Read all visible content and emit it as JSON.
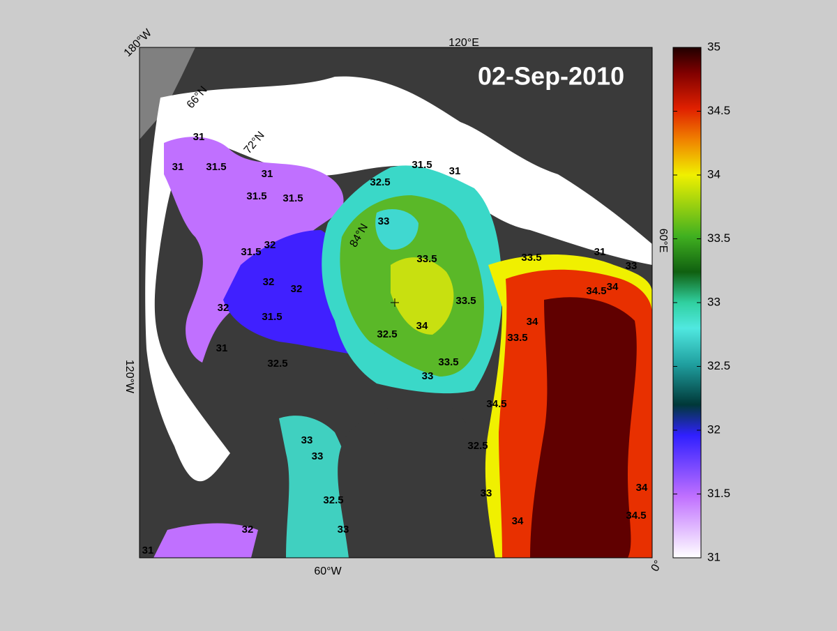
{
  "map": {
    "date": "02-Sep-2010",
    "longitude_labels": [
      "180°W",
      "120°E",
      "60°E",
      "0°",
      "60°W",
      "120°W"
    ],
    "latitude_labels": [
      "66°N",
      "72°N",
      "84°N"
    ],
    "contour_labels": [
      31,
      31.5,
      31,
      31,
      31.5,
      31.5,
      31.5,
      31,
      32.5,
      33,
      33.5,
      33.5,
      34,
      32.5,
      33.5,
      32,
      31.5,
      32,
      32,
      31.5,
      32,
      33.5,
      33,
      31,
      34.5,
      34,
      34,
      33.5,
      34.5,
      32.5,
      33,
      33,
      32.5,
      33,
      34,
      34,
      34.5,
      31,
      32,
      33,
      32.5,
      31,
      33
    ],
    "colorbar": {
      "limits": [
        31,
        35
      ],
      "ticks": [
        31,
        31.5,
        32,
        32.5,
        33,
        33.5,
        34,
        34.5,
        35
      ]
    }
  }
}
